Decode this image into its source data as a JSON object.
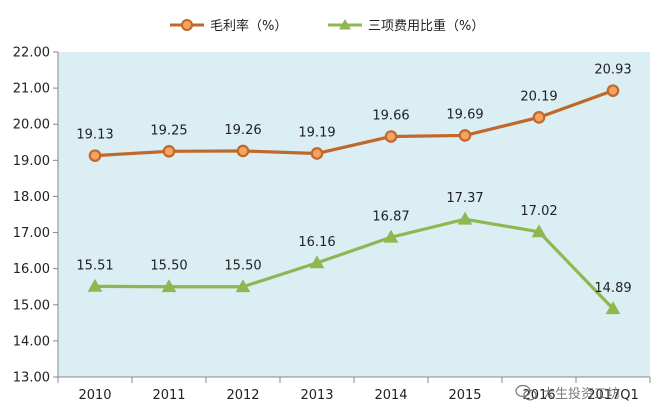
{
  "chart_data": {
    "type": "line",
    "title": "",
    "xlabel": "",
    "ylabel": "",
    "categories": [
      "2010",
      "2011",
      "2012",
      "2013",
      "2014",
      "2015",
      "2016",
      "2017Q1"
    ],
    "ylim": [
      13.0,
      22.0
    ],
    "y_ticks": [
      "13.00",
      "14.00",
      "15.00",
      "16.00",
      "17.00",
      "18.00",
      "19.00",
      "20.00",
      "21.00",
      "22.00"
    ],
    "grid": false,
    "legend_position": "top-center",
    "series": [
      {
        "name": "毛利率（%）",
        "values": [
          19.13,
          19.25,
          19.26,
          19.19,
          19.66,
          19.69,
          20.19,
          20.93
        ],
        "labels": [
          "19.13",
          "19.25",
          "19.26",
          "19.19",
          "19.66",
          "19.69",
          "20.19",
          "20.93"
        ],
        "color": "#C0682C",
        "marker": "circle",
        "marker_fill": "#F4A460"
      },
      {
        "name": "三项费用比重（%）",
        "values": [
          15.51,
          15.5,
          15.5,
          16.16,
          16.87,
          17.37,
          17.02,
          14.89
        ],
        "labels": [
          "15.51",
          "15.50",
          "15.50",
          "16.16",
          "16.87",
          "17.37",
          "17.02",
          "14.89"
        ],
        "color": "#8DB851",
        "marker": "triangle",
        "marker_fill": "#8DB851"
      }
    ],
    "plot_background": "#DAEEF3"
  },
  "watermark": {
    "text": "大生投资工坊",
    "icon": "wechat-icon"
  }
}
